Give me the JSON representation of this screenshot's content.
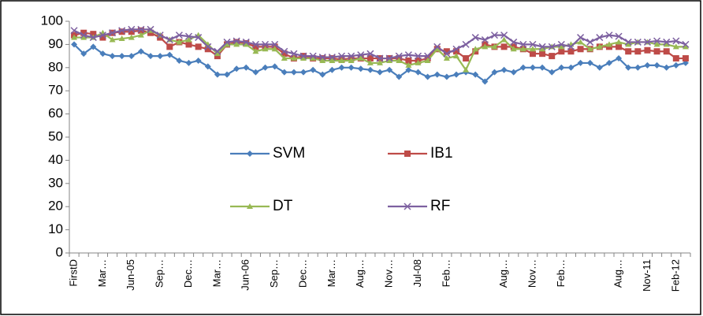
{
  "chart_data": {
    "type": "line",
    "categories": [
      "FirstD",
      null,
      null,
      "Mar…",
      null,
      null,
      "Jun-05",
      null,
      null,
      "Sep…",
      null,
      null,
      "Dec…",
      null,
      null,
      "Mar…",
      null,
      null,
      "Jun-06",
      null,
      null,
      "Sep…",
      null,
      null,
      "Dec…",
      null,
      null,
      "Mar…",
      null,
      null,
      "Aug…",
      null,
      null,
      "Nov…",
      null,
      null,
      "Jul-08",
      null,
      null,
      "Feb…",
      null,
      null,
      null,
      null,
      null,
      "Aug…",
      null,
      null,
      "Nov…",
      null,
      null,
      "Feb…",
      null,
      null,
      null,
      null,
      null,
      "Aug…",
      null,
      null,
      "Nov-11",
      null,
      null,
      "Feb-12",
      null
    ],
    "series": [
      {
        "name": "SVM",
        "color": "#4a7ebb",
        "marker": "diamond",
        "values": [
          90,
          86,
          89,
          86,
          85,
          85,
          85,
          87,
          85,
          85,
          85.5,
          83,
          82,
          83,
          80.5,
          77,
          77,
          79.5,
          80,
          78,
          80,
          80.5,
          78,
          78,
          78,
          79,
          77,
          79,
          80,
          80,
          79.5,
          79,
          78,
          79,
          76,
          79,
          78,
          76,
          77,
          76,
          77,
          78,
          77,
          74,
          78,
          79,
          78,
          80,
          80,
          80,
          78,
          80,
          80,
          82,
          82,
          80,
          82,
          84,
          80,
          80,
          81,
          81,
          80,
          81,
          82
        ]
      },
      {
        "name": "IB1",
        "color": "#be4b48",
        "marker": "square",
        "values": [
          94,
          95,
          94.5,
          93,
          95,
          95.5,
          95.5,
          96,
          95,
          93,
          89,
          91,
          90,
          89,
          88,
          85,
          90,
          91,
          90.5,
          89,
          89,
          89,
          86,
          84,
          85,
          84,
          84,
          84,
          83.5,
          84,
          84,
          84,
          84,
          84,
          84,
          83,
          83,
          84,
          88,
          87,
          87,
          84,
          87,
          90,
          89,
          89,
          89,
          88,
          86,
          86,
          85,
          87,
          87,
          88,
          88,
          89,
          89,
          89,
          87,
          87,
          87.5,
          87,
          87,
          84,
          84
        ]
      },
      {
        "name": "DT",
        "color": "#98b954",
        "marker": "triangle",
        "values": [
          93,
          93,
          93,
          95,
          92,
          92.5,
          93,
          94,
          96,
          94,
          92,
          91,
          92,
          94,
          90,
          86,
          90,
          90,
          90,
          87,
          88,
          88,
          84,
          84,
          84,
          84,
          83,
          83,
          83,
          83,
          84,
          82,
          82,
          83,
          83,
          81,
          82,
          83,
          88,
          84,
          85,
          79,
          88,
          89,
          89,
          92,
          88,
          88,
          88,
          88,
          89,
          89,
          90,
          91,
          88,
          89,
          90,
          91,
          90,
          91,
          91,
          90,
          90,
          89,
          89
        ]
      },
      {
        "name": "RF",
        "color": "#7d60a0",
        "marker": "x",
        "values": [
          96,
          94,
          93,
          94,
          95,
          96,
          96.5,
          96.5,
          96.5,
          94,
          92,
          94,
          93.5,
          93,
          89,
          87,
          91,
          91.5,
          91,
          90,
          90,
          90,
          87,
          86,
          85,
          85,
          84.5,
          84.5,
          85,
          85,
          85.5,
          86,
          84,
          84,
          85,
          85.5,
          85,
          85,
          89,
          86,
          88,
          90,
          93,
          92,
          94,
          94,
          91,
          90,
          90,
          89,
          89,
          90,
          89,
          93,
          91,
          93,
          94,
          93.5,
          91,
          91,
          91,
          91.5,
          91,
          91.5,
          90
        ]
      }
    ],
    "ylim": [
      0,
      100
    ],
    "yticks": [
      0,
      10,
      20,
      30,
      40,
      50,
      60,
      70,
      80,
      90,
      100
    ],
    "grid": false,
    "legend": "center"
  }
}
